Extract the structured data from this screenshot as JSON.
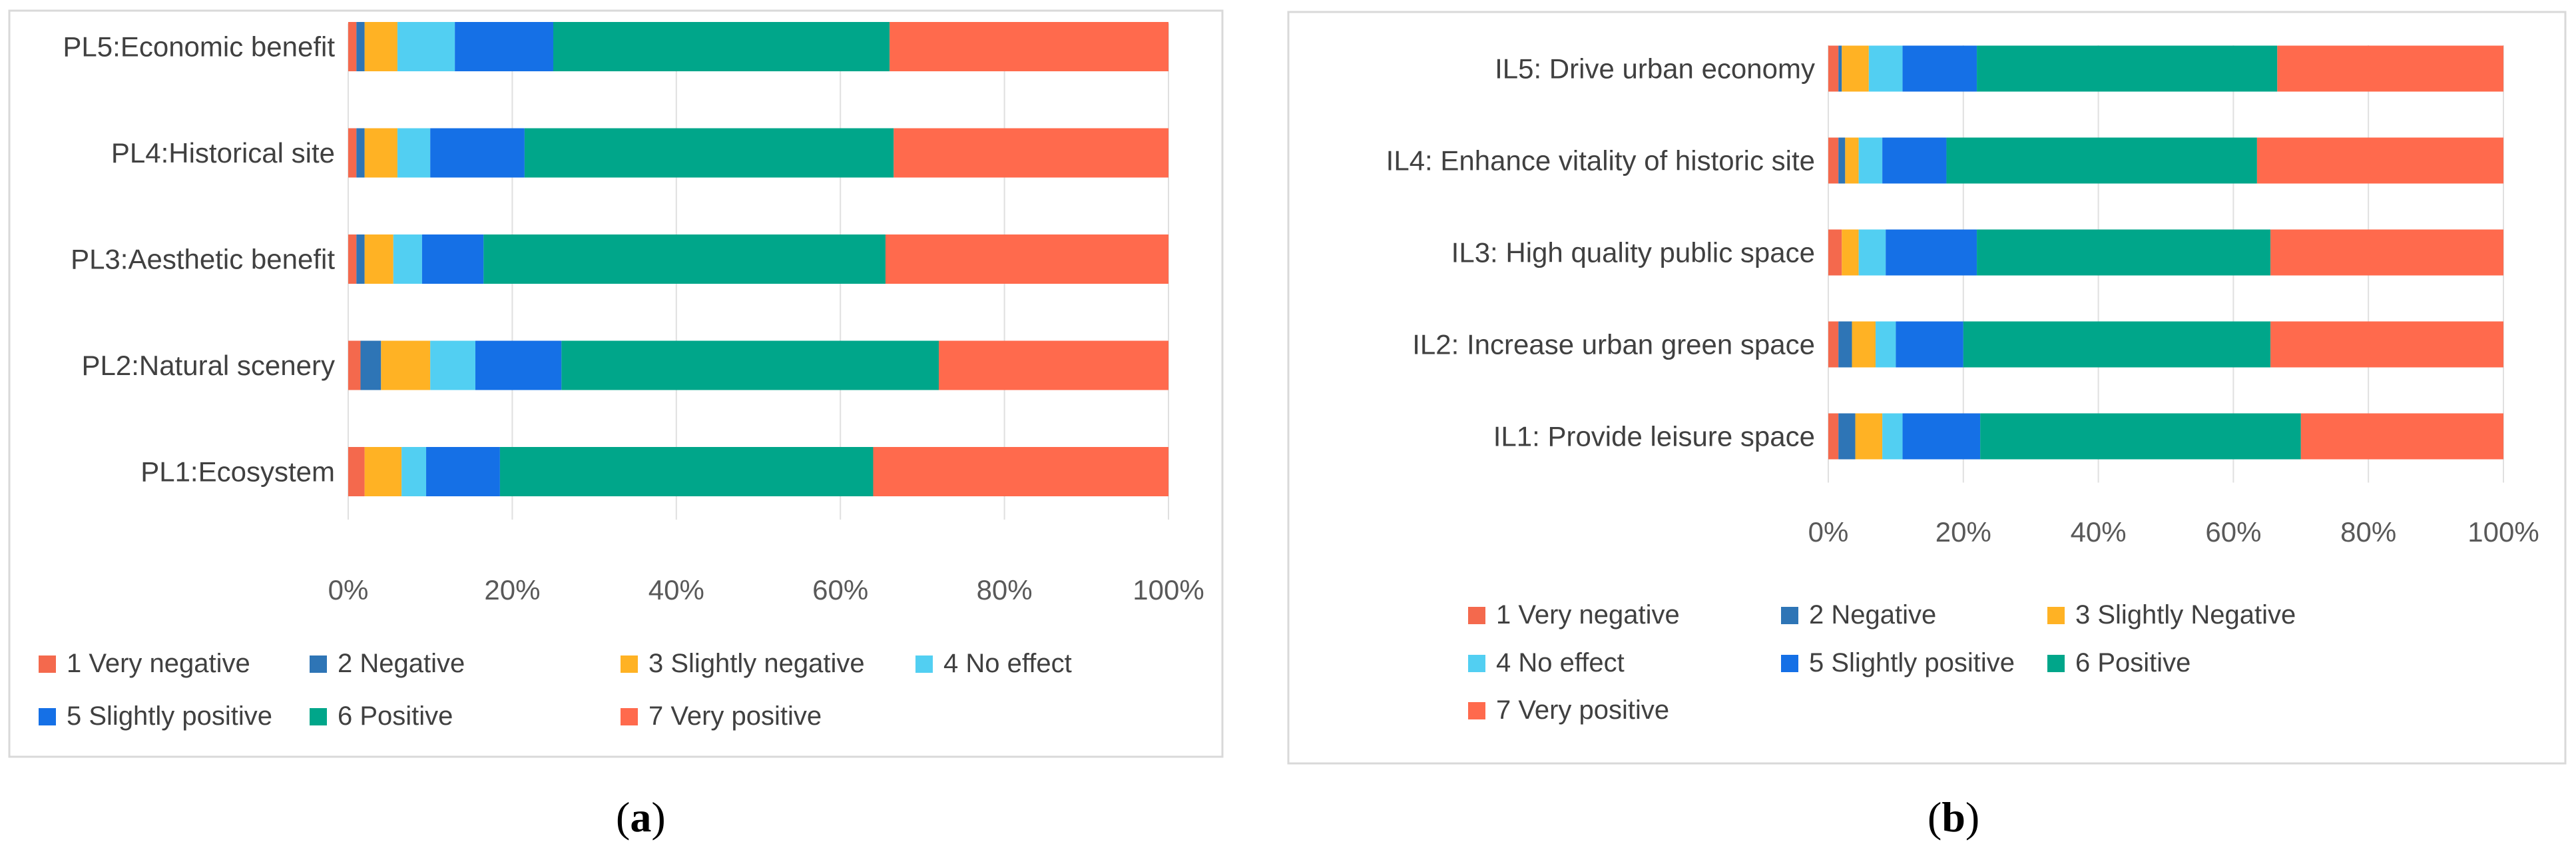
{
  "colors": {
    "1": "#F4694D",
    "2": "#2E75B6",
    "3": "#FFB224",
    "4": "#52CFF2",
    "5": "#1570E6",
    "6": "#00A68A",
    "7": "#FF6A4D"
  },
  "chart_data": [
    {
      "panel_label": "(a)",
      "type": "bar",
      "orientation": "horizontal",
      "stacked": "percent",
      "categories": [
        "PL5:Economic benefit",
        "PL4:Historical site",
        "PL3:Aesthetic benefit",
        "PL2:Natural scenery",
        "PL1:Ecosystem"
      ],
      "series": [
        {
          "name": "1 Very negative",
          "color_key": "1",
          "values": [
            1,
            1,
            1,
            1.5,
            2
          ]
        },
        {
          "name": "2 Negative",
          "color_key": "2",
          "values": [
            1,
            1,
            1,
            2.5,
            0
          ]
        },
        {
          "name": "3 Slightly negative",
          "color_key": "3",
          "values": [
            4,
            4,
            3.5,
            6,
            4.5
          ]
        },
        {
          "name": "4 No effect",
          "color_key": "4",
          "values": [
            7,
            4,
            3.5,
            5.5,
            3
          ]
        },
        {
          "name": "5 Slightly positive",
          "color_key": "5",
          "values": [
            12,
            11.5,
            7.5,
            10.5,
            9
          ]
        },
        {
          "name": "6 Positive",
          "color_key": "6",
          "values": [
            41,
            45,
            49,
            46,
            45.5
          ]
        },
        {
          "name": "7 Very positive",
          "color_key": "7",
          "values": [
            34,
            33.5,
            34.5,
            28,
            36
          ]
        }
      ],
      "xticks": [
        "0%",
        "20%",
        "40%",
        "60%",
        "80%",
        "100%"
      ],
      "xlim": [
        0,
        100
      ],
      "legend_position": "bottom",
      "legend_rows": [
        [
          "1 Very negative",
          "2 Negative",
          "3 Slightly negative",
          "4 No effect"
        ],
        [
          "5 Slightly positive",
          "6 Positive",
          "7 Very positive"
        ]
      ]
    },
    {
      "panel_label": "(b)",
      "type": "bar",
      "orientation": "horizontal",
      "stacked": "percent",
      "categories": [
        "IL5: Drive urban economy",
        "IL4: Enhance vitality of historic site",
        "IL3: High quality public space",
        "IL2: Increase urban green space",
        "IL1: Provide leisure space"
      ],
      "series": [
        {
          "name": "1 Very negative",
          "color_key": "1",
          "values": [
            1.5,
            1.5,
            2,
            1.5,
            1.5
          ]
        },
        {
          "name": "2 Negative",
          "color_key": "2",
          "values": [
            0.5,
            1,
            0,
            2,
            2.5
          ]
        },
        {
          "name": "3 Slightly Negative",
          "color_key": "3",
          "values": [
            4,
            2,
            2.5,
            3.5,
            4
          ]
        },
        {
          "name": "4 No effect",
          "color_key": "4",
          "values": [
            5,
            3.5,
            4,
            3,
            3
          ]
        },
        {
          "name": "5 Slightly positive",
          "color_key": "5",
          "values": [
            11,
            9.5,
            13.5,
            10,
            11.5
          ]
        },
        {
          "name": "6 Positive",
          "color_key": "6",
          "values": [
            44.5,
            46,
            43.5,
            45.5,
            47.5
          ]
        },
        {
          "name": "7 Very positive",
          "color_key": "7",
          "values": [
            33.5,
            36.5,
            34.5,
            34.5,
            30
          ]
        }
      ],
      "xticks": [
        "0%",
        "20%",
        "40%",
        "60%",
        "80%",
        "100%"
      ],
      "xlim": [
        0,
        100
      ],
      "legend_position": "bottom",
      "legend_rows": [
        [
          "1 Very negative",
          "2 Negative",
          "3 Slightly Negative"
        ],
        [
          "4 No effect",
          "5 Slightly positive",
          "6 Positive"
        ],
        [
          "7 Very positive"
        ]
      ]
    }
  ]
}
